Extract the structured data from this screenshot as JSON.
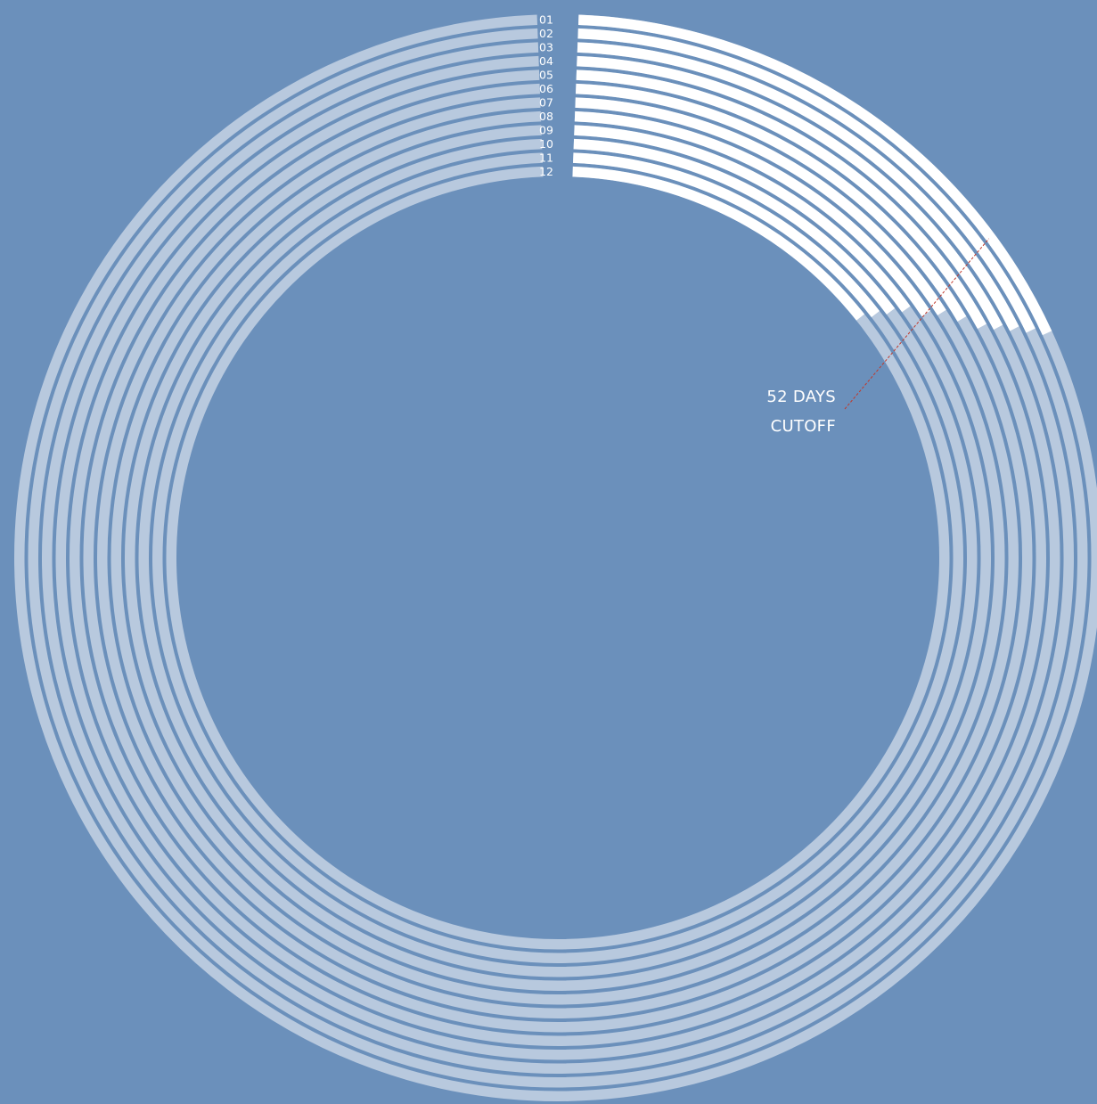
{
  "chart_data": {
    "type": "radial-bar",
    "rings": [
      {
        "label": "01",
        "value": 64
      },
      {
        "label": "02",
        "value": 63
      },
      {
        "label": "03",
        "value": 62
      },
      {
        "label": "04",
        "value": 61
      },
      {
        "label": "05",
        "value": 60
      },
      {
        "label": "06",
        "value": 58
      },
      {
        "label": "07",
        "value": 56
      },
      {
        "label": "08",
        "value": 55
      },
      {
        "label": "09",
        "value": 53
      },
      {
        "label": "10",
        "value": 52
      },
      {
        "label": "11",
        "value": 51
      },
      {
        "label": "12",
        "value": 50
      }
    ],
    "total_days": 365,
    "cutoff": {
      "value": 52,
      "line1": "52 DAYS",
      "line2": "CUTOFF"
    },
    "colors": {
      "background": "#6b90bb",
      "track": "#b8c9de",
      "fill": "#ffffff",
      "cutoff_line": "#c0392b",
      "label_text": "#ffffff"
    }
  }
}
